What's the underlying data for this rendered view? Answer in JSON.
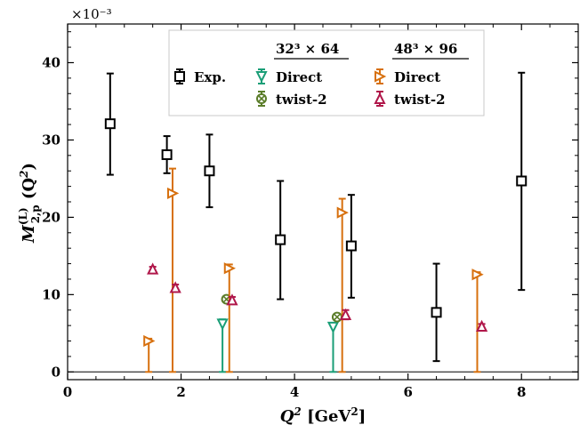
{
  "chart_data": {
    "type": "scatter",
    "exponent_label": "×10⁻³",
    "xlabel_main": "Q",
    "xlabel_sup": "2",
    "xlabel_unit": "[GeV",
    "xlabel_unit_sup": "2",
    "xlabel_unit_close": "]",
    "ylabel_main": "M",
    "ylabel_sup": "(L)",
    "ylabel_sub": "2,p",
    "ylabel_arg": "(Q",
    "ylabel_arg_sup": "2",
    "ylabel_arg_close": ")",
    "xlim": [
      0,
      9
    ],
    "ylim": [
      -1,
      45
    ],
    "xticks": [
      "0",
      "2",
      "4",
      "6",
      "8"
    ],
    "xtick_values": [
      0,
      2,
      4,
      6,
      8
    ],
    "yticks": [
      "0",
      "10",
      "20",
      "30",
      "40"
    ],
    "ytick_values": [
      0,
      10,
      20,
      30,
      40
    ],
    "legend": {
      "placement": "top-center",
      "group1_label": "32³ × 64",
      "group2_label": "48³ × 96",
      "entries": {
        "exp": "Exp.",
        "direct32": "Direct",
        "twist32": "twist-2",
        "direct48": "Direct",
        "twist48": "twist-2"
      }
    },
    "series": [
      {
        "key": "exp",
        "color": "#000000",
        "marker": "square",
        "points": [
          {
            "x": 0.75,
            "y": 32.1,
            "lo": 25.5,
            "hi": 38.6
          },
          {
            "x": 1.75,
            "y": 28.1,
            "lo": 25.7,
            "hi": 30.5
          },
          {
            "x": 2.5,
            "y": 26.0,
            "lo": 21.3,
            "hi": 30.7
          },
          {
            "x": 3.75,
            "y": 17.1,
            "lo": 9.4,
            "hi": 24.7
          },
          {
            "x": 5.0,
            "y": 16.3,
            "lo": 9.6,
            "hi": 22.9
          },
          {
            "x": 6.5,
            "y": 7.7,
            "lo": 1.4,
            "hi": 14.0
          },
          {
            "x": 8.0,
            "y": 24.7,
            "lo": 10.6,
            "hi": 38.7
          }
        ]
      },
      {
        "key": "direct32",
        "color": "#1a9e77",
        "marker": "triangle-down",
        "points": [
          {
            "x": 2.73,
            "y": 6.2,
            "lo": 0.0,
            "hi": 6.8
          },
          {
            "x": 4.68,
            "y": 5.8,
            "lo": 0.0,
            "hi": 6.3
          }
        ]
      },
      {
        "key": "twist32",
        "color": "#5b7d2a",
        "marker": "circle-x",
        "points": [
          {
            "x": 2.8,
            "y": 9.4,
            "lo": 9.0,
            "hi": 9.8
          },
          {
            "x": 4.75,
            "y": 7.1,
            "lo": 6.8,
            "hi": 7.4
          }
        ]
      },
      {
        "key": "direct48",
        "color": "#d7700e",
        "marker": "triangle-right",
        "points": [
          {
            "x": 1.43,
            "y": 4.0,
            "lo": 0.0,
            "hi": 4.3
          },
          {
            "x": 1.85,
            "y": 23.1,
            "lo": 0.0,
            "hi": 26.3
          },
          {
            "x": 2.85,
            "y": 13.4,
            "lo": 0.0,
            "hi": 13.9
          },
          {
            "x": 4.84,
            "y": 20.6,
            "lo": 0.0,
            "hi": 22.4
          },
          {
            "x": 7.22,
            "y": 12.6,
            "lo": 0.0,
            "hi": 12.9
          }
        ]
      },
      {
        "key": "twist48",
        "color": "#b0174a",
        "marker": "triangle-up",
        "points": [
          {
            "x": 1.5,
            "y": 13.3,
            "lo": 13.0,
            "hi": 13.6
          },
          {
            "x": 1.9,
            "y": 10.9,
            "lo": 10.5,
            "hi": 11.3
          },
          {
            "x": 2.9,
            "y": 9.3,
            "lo": 8.9,
            "hi": 9.7
          },
          {
            "x": 4.9,
            "y": 7.4,
            "lo": 6.8,
            "hi": 8.0
          },
          {
            "x": 7.3,
            "y": 5.9,
            "lo": 5.6,
            "hi": 6.2
          }
        ]
      }
    ]
  }
}
